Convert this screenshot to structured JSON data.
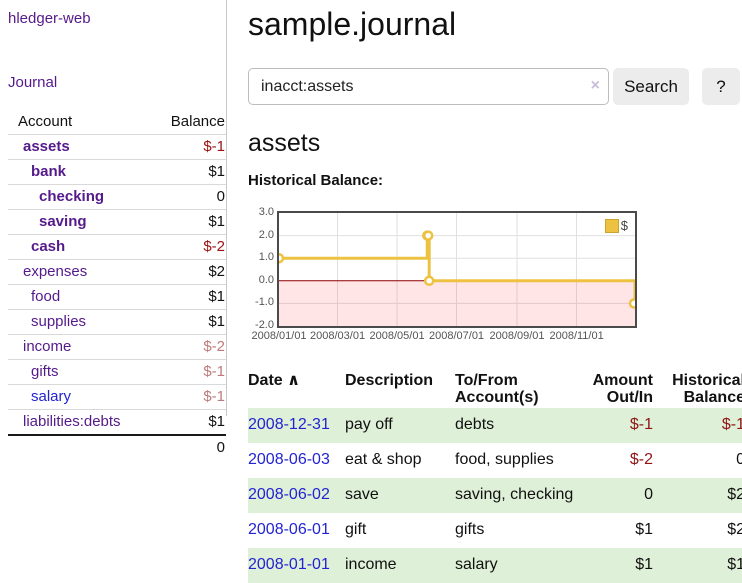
{
  "app": {
    "brand": "hledger-web",
    "nav_journal": "Journal"
  },
  "theme": {
    "link_purple": "#551a8b",
    "link_blue": "#2323d2",
    "negative_strong": "#9b1111",
    "negative_pale": "#bd7b7b",
    "register_negative": "#8f1515",
    "row_green": "#dff0d8",
    "series_gold": "#edc240",
    "zero_line_red": "#8b0000",
    "negative_region_pink": "rgba(255,0,0,0.10)"
  },
  "sidebar": {
    "header": {
      "account": "Account",
      "balance": "Balance"
    },
    "accounts": [
      {
        "name": "assets",
        "depth": 1,
        "bold": true,
        "link": "purple",
        "balance": "$-1",
        "bal_style": "neg"
      },
      {
        "name": "bank",
        "depth": 2,
        "bold": true,
        "link": "purple",
        "balance": "$1",
        "bal_style": ""
      },
      {
        "name": "checking",
        "depth": 3,
        "bold": true,
        "link": "purple",
        "balance": "0",
        "bal_style": ""
      },
      {
        "name": "saving",
        "depth": 3,
        "bold": true,
        "link": "purple",
        "balance": "$1",
        "bal_style": ""
      },
      {
        "name": "cash",
        "depth": 2,
        "bold": true,
        "link": "purple",
        "balance": "$-2",
        "bal_style": "neg"
      },
      {
        "name": "expenses",
        "depth": 1,
        "bold": false,
        "link": "purple",
        "balance": "$2",
        "bal_style": ""
      },
      {
        "name": "food",
        "depth": 2,
        "bold": false,
        "link": "purple",
        "balance": "$1",
        "bal_style": ""
      },
      {
        "name": "supplies",
        "depth": 2,
        "bold": false,
        "link": "purple",
        "balance": "$1",
        "bal_style": ""
      },
      {
        "name": "income",
        "depth": 1,
        "bold": false,
        "link": "purple",
        "balance": "$-2",
        "bal_style": "neg-pale"
      },
      {
        "name": "gifts",
        "depth": 2,
        "bold": false,
        "link": "purple",
        "balance": "$-1",
        "bal_style": "neg-pale"
      },
      {
        "name": "salary",
        "depth": 2,
        "bold": false,
        "link": "blue",
        "balance": "$-1",
        "bal_style": "neg-pale"
      },
      {
        "name": "liabilities:debts",
        "depth": 1,
        "bold": false,
        "link": "purple",
        "balance": "$1",
        "bal_style": ""
      }
    ],
    "total": "0"
  },
  "header": {
    "title": "sample.journal"
  },
  "search": {
    "value": "inacct:assets",
    "clear_icon": "×",
    "button_label": "Search",
    "help_label": "?"
  },
  "account_page": {
    "title": "assets",
    "chart_heading": "Historical Balance:"
  },
  "chart_data": {
    "type": "line",
    "step": true,
    "title": "Historical Balance:",
    "legend": "$",
    "legend_position": "top-right",
    "grid": true,
    "xlim": [
      "2008-01-01",
      "2008-12-31"
    ],
    "ylim": [
      -2,
      3
    ],
    "yticks": [
      3.0,
      2.0,
      1.0,
      0.0,
      -1.0,
      -2.0
    ],
    "ytick_labels": [
      "3.0",
      "2.0",
      "1.0",
      "0.0",
      "-1.0",
      "-2.0"
    ],
    "xticks": [
      "2008-01-01",
      "2008-03-01",
      "2008-05-01",
      "2008-07-01",
      "2008-09-01",
      "2008-11-01"
    ],
    "xtick_labels": [
      "2008/01/01",
      "2008/03/01",
      "2008/05/01",
      "2008/07/01",
      "2008/09/01",
      "2008/11/01"
    ],
    "negative_region_shaded": true,
    "series": [
      {
        "name": "$",
        "color": "#edc240",
        "points": [
          [
            "2008-01-01",
            1
          ],
          [
            "2008-06-01",
            2
          ],
          [
            "2008-06-02",
            2
          ],
          [
            "2008-06-03",
            0
          ],
          [
            "2008-12-31",
            -1
          ]
        ]
      }
    ]
  },
  "register": {
    "columns": {
      "date": {
        "label": "Date",
        "sort_icon": "∧"
      },
      "description": {
        "label": "Description"
      },
      "accounts": {
        "line1": "To/From",
        "line2": "Account(s)"
      },
      "amount": {
        "line1": "Amount",
        "line2": "Out/In"
      },
      "balance": {
        "line1": "Historical",
        "line2": "Balance"
      }
    },
    "rows": [
      {
        "date": "2008-12-31",
        "description": "pay off",
        "accounts": "debts",
        "amount": "$-1",
        "amount_neg": true,
        "balance": "$-1",
        "balance_neg": true,
        "shade": true
      },
      {
        "date": "2008-06-03",
        "description": "eat & shop",
        "accounts": "food, supplies",
        "amount": "$-2",
        "amount_neg": true,
        "balance": "0",
        "balance_neg": false,
        "shade": false
      },
      {
        "date": "2008-06-02",
        "description": "save",
        "accounts": "saving, checking",
        "amount": "0",
        "amount_neg": false,
        "balance": "$2",
        "balance_neg": false,
        "shade": true
      },
      {
        "date": "2008-06-01",
        "description": "gift",
        "accounts": "gifts",
        "amount": "$1",
        "amount_neg": false,
        "balance": "$2",
        "balance_neg": false,
        "shade": false
      },
      {
        "date": "2008-01-01",
        "description": "income",
        "accounts": "salary",
        "amount": "$1",
        "amount_neg": false,
        "balance": "$1",
        "balance_neg": false,
        "shade": true
      }
    ]
  }
}
